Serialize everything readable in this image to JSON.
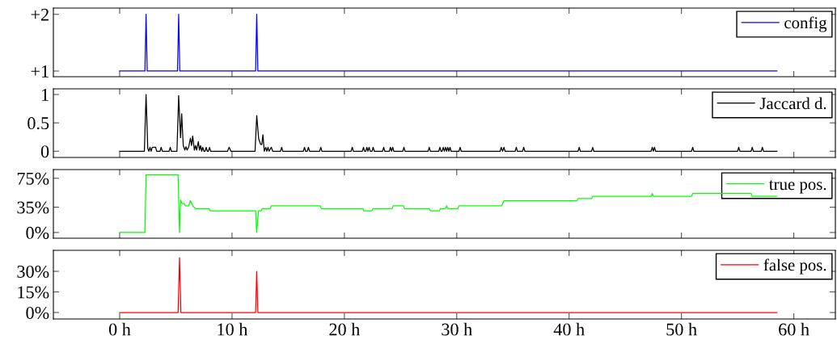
{
  "chart_data": [
    {
      "type": "line",
      "xlim": [
        -5.9,
        63.7
      ],
      "xticks": [
        {
          "value": 0,
          "label": null
        },
        {
          "value": 10,
          "label": null
        },
        {
          "value": 20,
          "label": null
        },
        {
          "value": 30,
          "label": null
        },
        {
          "value": 40,
          "label": null
        },
        {
          "value": 50,
          "label": null
        },
        {
          "value": 60,
          "label": null
        }
      ],
      "ylim": [
        0.9,
        2.11
      ],
      "yticks": [
        {
          "value": 1,
          "label": "+1"
        },
        {
          "value": 2,
          "label": "+2"
        }
      ],
      "tick_labels": "y",
      "legend": "top right",
      "grid": false,
      "marker": "none",
      "line_style": "solid",
      "series": [
        {
          "name": "config",
          "color": "#0000ff",
          "x": [
            0,
            2.25,
            2.35,
            2.45,
            5.15,
            5.25,
            5.35,
            12.1,
            12.2,
            12.3,
            58.5
          ],
          "values": [
            1,
            1,
            2,
            1,
            1,
            2,
            1,
            1,
            2,
            1,
            1
          ]
        }
      ]
    },
    {
      "type": "line",
      "xlim": [
        -5.9,
        63.7
      ],
      "xticks": [
        {
          "value": 0,
          "label": null
        },
        {
          "value": 10,
          "label": null
        },
        {
          "value": 20,
          "label": null
        },
        {
          "value": 30,
          "label": null
        },
        {
          "value": 40,
          "label": null
        },
        {
          "value": 50,
          "label": null
        },
        {
          "value": 60,
          "label": null
        }
      ],
      "ylim": [
        -0.11,
        1.1
      ],
      "yticks": [
        0,
        0.5,
        1
      ],
      "tick_labels": "y",
      "legend": "top right",
      "grid": false,
      "marker": "none",
      "line_style": "solid",
      "series": [
        {
          "name": "Jaccard d.",
          "color": "#000000",
          "x": [
            0,
            2.2,
            2.35,
            2.5,
            2.6,
            2.7,
            2.8,
            2.9,
            3.2,
            3.3,
            3.6,
            3.69,
            3.8,
            4.4,
            4.5,
            4.6,
            5.1,
            5.25,
            5.42,
            5.52,
            5.66,
            5.8,
            5.9,
            6.0,
            6.15,
            6.3,
            6.4,
            6.5,
            6.65,
            6.75,
            6.85,
            7.0,
            7.1,
            7.2,
            7.3,
            7.39,
            7.5,
            7.6,
            7.7,
            7.8,
            7.9,
            8.0,
            8.1,
            9.6,
            9.74,
            9.9,
            12.05,
            12.2,
            12.37,
            12.55,
            12.65,
            12.75,
            12.87,
            13.0,
            13.1,
            13.2,
            13.3,
            13.5,
            13.62,
            14.32,
            14.42,
            14.52,
            16.35,
            16.45,
            16.55,
            16.7,
            16.8,
            16.9,
            17.8,
            17.9,
            18.0,
            20.6,
            20.7,
            20.8,
            21.6,
            21.7,
            21.8,
            21.9,
            22.0,
            22.1,
            22.2,
            22.3,
            22.46,
            22.56,
            22.66,
            23.4,
            23.5,
            23.6,
            24.0,
            24.1,
            24.2,
            24.3,
            24.4,
            25.2,
            25.3,
            25.4,
            27.45,
            27.55,
            27.65,
            28.4,
            28.5,
            28.6,
            28.7,
            28.8,
            28.9,
            29.0,
            29.1,
            29.2,
            29.3,
            29.4,
            29.5,
            30.2,
            30.3,
            30.4,
            33.86,
            33.96,
            34.08,
            34.2,
            34.3,
            35.2,
            35.3,
            35.4,
            35.86,
            35.96,
            36.06,
            40.8,
            40.9,
            41.0,
            42.0,
            42.1,
            42.2,
            47.3,
            47.4,
            47.5,
            47.6,
            47.7,
            50.9,
            51.0,
            51.1,
            55.0,
            55.1,
            55.2,
            56.2,
            56.3,
            56.4,
            57.1,
            57.2,
            57.3,
            58.5
          ],
          "values": [
            0,
            0,
            1.0,
            0.05,
            0,
            0.07,
            0,
            0.07,
            0.07,
            0,
            0,
            0.07,
            0,
            0,
            0.07,
            0,
            0,
            0.98,
            0.24,
            0.66,
            0.1,
            0.02,
            0.08,
            0.02,
            0.08,
            0.23,
            0.1,
            0.27,
            0.02,
            0.1,
            0.02,
            0.17,
            0.02,
            0.1,
            0,
            0.07,
            0,
            0,
            0.07,
            0,
            0,
            0.07,
            0,
            0,
            0.07,
            0,
            0,
            0.63,
            0.22,
            0.12,
            0.12,
            0.29,
            0,
            0.07,
            0,
            0.07,
            0,
            0.07,
            0,
            0,
            0.07,
            0,
            0,
            0.07,
            0,
            0,
            0.07,
            0,
            0,
            0.07,
            0,
            0,
            0.07,
            0,
            0,
            0.07,
            0,
            0,
            0.07,
            0,
            0.07,
            0,
            0,
            0.07,
            0,
            0,
            0.07,
            0,
            0,
            0.07,
            0,
            0.07,
            0,
            0,
            0.07,
            0,
            0,
            0.07,
            0,
            0,
            0.07,
            0,
            0,
            0.07,
            0,
            0.07,
            0,
            0.07,
            0,
            0.07,
            0,
            0,
            0.07,
            0,
            0,
            0.07,
            0,
            0.07,
            0,
            0,
            0.07,
            0,
            0,
            0.07,
            0,
            0,
            0.07,
            0,
            0,
            0.07,
            0,
            0,
            0.07,
            0,
            0.07,
            0,
            0,
            0.07,
            0,
            0,
            0.07,
            0,
            0,
            0.07,
            0,
            0,
            0.07,
            0,
            0
          ]
        }
      ]
    },
    {
      "type": "line",
      "xlim": [
        -5.9,
        63.7
      ],
      "xticks": [
        {
          "value": 0,
          "label": null
        },
        {
          "value": 10,
          "label": null
        },
        {
          "value": 20,
          "label": null
        },
        {
          "value": 30,
          "label": null
        },
        {
          "value": 40,
          "label": null
        },
        {
          "value": 50,
          "label": null
        },
        {
          "value": 60,
          "label": null
        }
      ],
      "ylim": [
        -7.9,
        87
      ],
      "yticks": [
        {
          "value": 0,
          "label": "0%"
        },
        {
          "value": 35,
          "label": "35%"
        },
        {
          "value": 75,
          "label": "75%"
        }
      ],
      "tick_labels": "y",
      "legend": "top right",
      "grid": false,
      "marker": "none",
      "line_style": "solid",
      "series": [
        {
          "name": "true pos.",
          "color": "#00ff00",
          "x": [
            0,
            2.25,
            2.35,
            5.2,
            5.33,
            5.42,
            5.55,
            5.75,
            5.85,
            6.15,
            6.3,
            6.5,
            6.75,
            7.95,
            8.05,
            12.1,
            12.2,
            12.35,
            12.6,
            12.7,
            13.4,
            13.5,
            17.85,
            17.95,
            21.65,
            21.75,
            22.45,
            22.55,
            24.25,
            24.35,
            25.25,
            25.35,
            27.55,
            27.65,
            28.45,
            28.55,
            29.0,
            29.1,
            29.2,
            30.1,
            30.2,
            34.0,
            34.2,
            40.7,
            40.8,
            42.0,
            42.1,
            47.3,
            47.4,
            47.5,
            50.9,
            51.0,
            56.2,
            56.3,
            58.5
          ],
          "values": [
            0,
            0,
            80,
            80,
            0,
            45,
            40,
            40,
            37,
            37,
            44,
            37,
            33,
            33,
            30,
            30,
            0,
            30,
            30,
            33,
            33,
            37,
            37,
            33,
            33,
            30,
            30,
            33,
            33,
            37,
            37,
            33,
            33,
            30,
            30,
            33,
            33,
            37,
            33,
            33,
            37,
            37,
            44,
            44,
            47,
            47,
            50,
            50,
            54,
            50,
            50,
            54,
            54,
            50,
            50
          ]
        }
      ]
    },
    {
      "type": "line",
      "xlim": [
        -5.9,
        63.7
      ],
      "xticks": [
        {
          "value": 0,
          "label": "0 h"
        },
        {
          "value": 10,
          "label": "10 h"
        },
        {
          "value": 20,
          "label": "20 h"
        },
        {
          "value": 30,
          "label": "30 h"
        },
        {
          "value": 40,
          "label": "40 h"
        },
        {
          "value": 50,
          "label": "50 h"
        },
        {
          "value": 60,
          "label": "60 h"
        }
      ],
      "ylim": [
        -4.7,
        45.3
      ],
      "yticks": [
        {
          "value": 0,
          "label": "0%"
        },
        {
          "value": 15,
          "label": "15%"
        },
        {
          "value": 30,
          "label": "30%"
        }
      ],
      "legend": "top right",
      "grid": false,
      "marker": "none",
      "line_style": "solid",
      "series": [
        {
          "name": "false pos.",
          "color": "#ff0000",
          "x": [
            0,
            5.2,
            5.33,
            5.45,
            12.1,
            12.2,
            12.3,
            58.5
          ],
          "values": [
            0,
            0,
            40,
            0,
            0,
            30,
            0,
            0
          ]
        }
      ]
    }
  ]
}
